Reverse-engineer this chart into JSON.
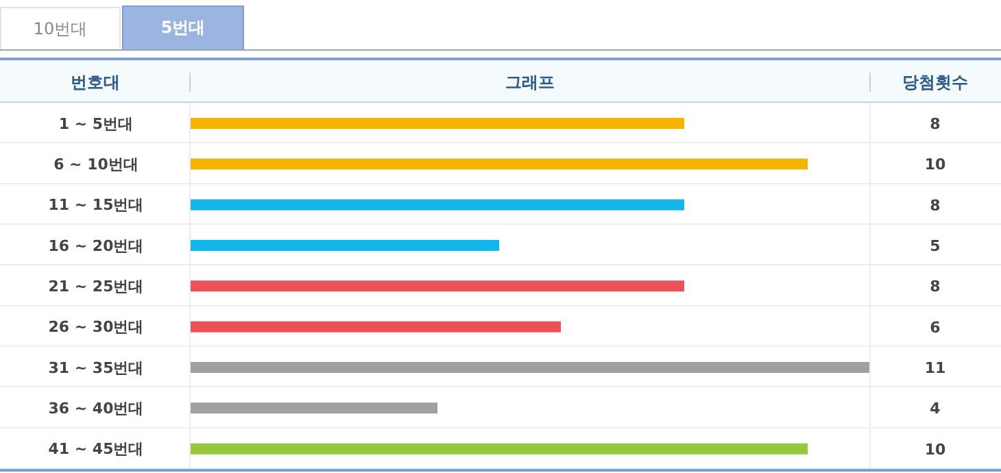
{
  "chart_data": {
    "type": "bar",
    "orientation": "horizontal",
    "title": "그래프",
    "ylabel": "번호대",
    "annotations": [
      "10번대",
      "5번대",
      "당첨횟수"
    ],
    "categories": [
      "1 ~ 5번대",
      "6 ~ 10번대",
      "11 ~ 15번대",
      "16 ~ 20번대",
      "21 ~ 25번대",
      "26 ~ 30번대",
      "31 ~ 35번대",
      "36 ~ 40번대",
      "41 ~ 45번대"
    ],
    "values": [
      8,
      10,
      8,
      5,
      8,
      6,
      11,
      4,
      10
    ],
    "colors": [
      "#f5b400",
      "#f5b400",
      "#12b6ea",
      "#12b6ea",
      "#ec5158",
      "#ec5158",
      "#a0a0a0",
      "#a0a0a0",
      "#95c83a"
    ],
    "xlim": [
      0,
      11
    ],
    "data_labels": true,
    "tick_labels": "y",
    "grid": false,
    "legend": false
  }
}
